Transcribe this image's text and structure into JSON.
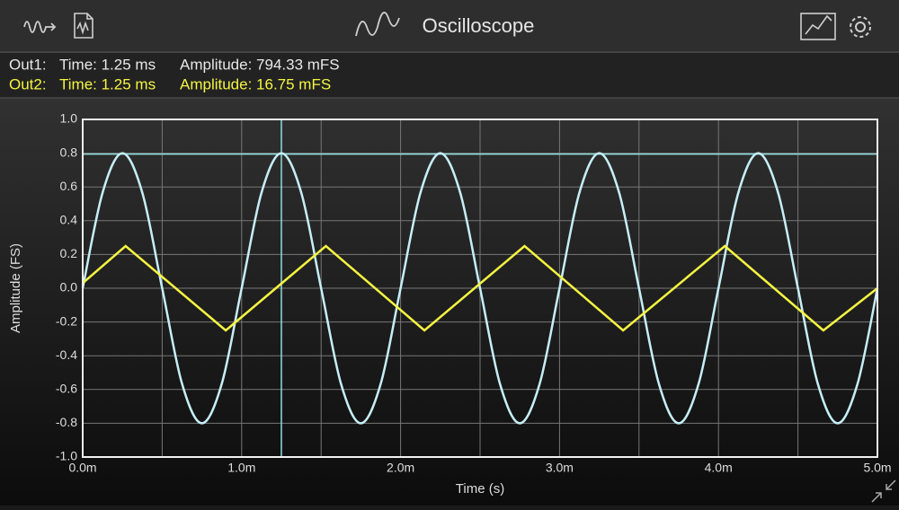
{
  "header": {
    "title": "Oscilloscope"
  },
  "readouts": [
    {
      "label": "Out1:",
      "time": "Time: 1.25 ms",
      "amplitude": "Amplitude: 794.33 mFS",
      "color": "#e8e8e8"
    },
    {
      "label": "Out2:",
      "time": "Time: 1.25 ms",
      "amplitude": "Amplitude: 16.75 mFS",
      "color": "#f5f542"
    }
  ],
  "chart_data": {
    "type": "line",
    "xlabel": "Time (s)",
    "ylabel": "Amplitude (FS)",
    "xlim": [
      0,
      5
    ],
    "ylim": [
      -1,
      1
    ],
    "xticks": [
      {
        "value": 0,
        "label": "0.0m"
      },
      {
        "value": 1,
        "label": "1.0m"
      },
      {
        "value": 2,
        "label": "2.0m"
      },
      {
        "value": 3,
        "label": "3.0m"
      },
      {
        "value": 4,
        "label": "4.0m"
      },
      {
        "value": 5,
        "label": "5.0m"
      }
    ],
    "yticks": [
      {
        "value": 1,
        "label": "1.0"
      },
      0.8,
      0.6,
      0.4,
      0.2,
      {
        "value": 0,
        "label": "0.0"
      },
      -0.2,
      -0.4,
      -0.6,
      -0.8,
      {
        "value": -1,
        "label": "-1.0"
      }
    ],
    "grid": true,
    "series": [
      {
        "color": "#c6eef6",
        "smooth": true,
        "x": [
          0,
          0.125,
          0.25,
          0.375,
          0.5,
          0.625,
          0.75,
          0.875,
          1,
          1.125,
          1.25,
          1.375,
          1.5,
          1.625,
          1.75,
          1.875,
          2,
          2.125,
          2.25,
          2.375,
          2.5,
          2.625,
          2.75,
          2.875,
          3,
          3.125,
          3.25,
          3.375,
          3.5,
          3.625,
          3.75,
          3.875,
          4,
          4.125,
          4.25,
          4.375,
          4.5,
          4.625,
          4.75,
          4.875,
          5
        ],
        "values": [
          0,
          0.566,
          0.8,
          0.566,
          0,
          -0.566,
          -0.8,
          -0.566,
          0,
          0.566,
          0.8,
          0.566,
          0,
          -0.566,
          -0.8,
          -0.566,
          0,
          0.566,
          0.8,
          0.566,
          0,
          -0.566,
          -0.8,
          -0.566,
          0,
          0.566,
          0.8,
          0.566,
          0,
          -0.566,
          -0.8,
          -0.566,
          0,
          0.566,
          0.8,
          0.566,
          0,
          -0.566,
          -0.8,
          -0.566,
          0
        ]
      },
      {
        "color": "#f5f542",
        "smooth": false,
        "x": [
          0,
          0.27,
          0.9,
          1.53,
          2.15,
          2.78,
          3.4,
          4.04,
          4.66,
          5
        ],
        "values": [
          0.03,
          0.25,
          -0.25,
          0.25,
          -0.25,
          0.25,
          -0.25,
          0.25,
          -0.25,
          0
        ]
      }
    ],
    "cursor": {
      "x": 1.25,
      "y": 0.79433,
      "color": "#8fdede"
    }
  }
}
